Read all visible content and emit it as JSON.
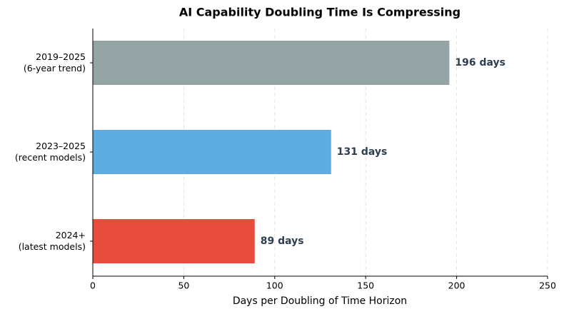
{
  "chart_data": {
    "type": "barh",
    "title": "AI Capability Doubling Time Is Compressing",
    "xlabel": "Days per Doubling of Time Horizon",
    "categories": [
      "2019–2025\n(6-year trend)",
      "2023–2025\n(recent models)",
      "2024+\n(latest models)"
    ],
    "values": [
      196,
      131,
      89
    ],
    "value_labels": [
      "196 days",
      "131 days",
      "89 days"
    ],
    "colors": [
      "#95a5a6",
      "#5dade2",
      "#e74c3c"
    ],
    "xlim": [
      0,
      250
    ],
    "xticks": [
      0,
      50,
      100,
      150,
      200,
      250
    ],
    "grid": true
  }
}
